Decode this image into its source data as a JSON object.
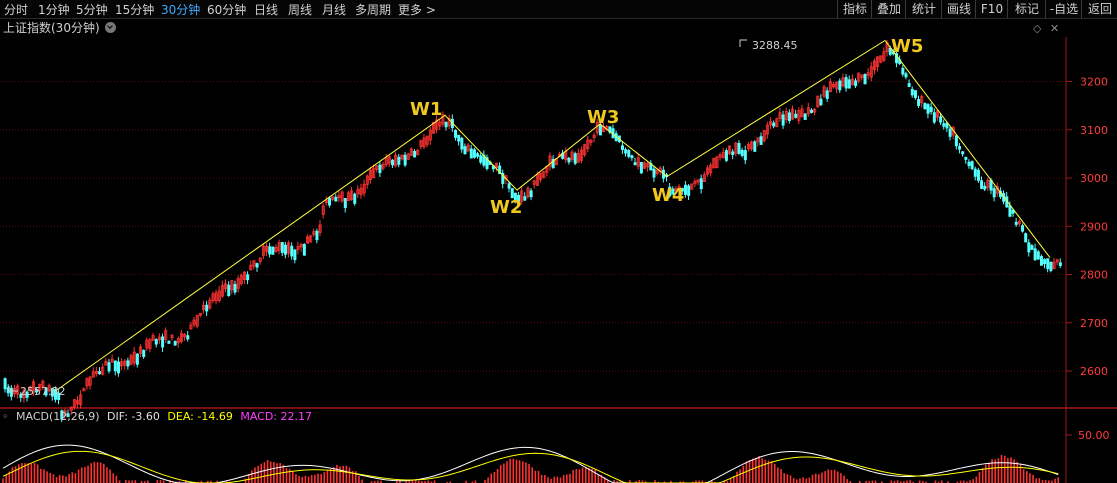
{
  "toolbar": {
    "periods": [
      "分时",
      "1分钟",
      "5分钟",
      "15分钟",
      "30分钟",
      "60分钟",
      "日线",
      "周线",
      "月线",
      "多周期",
      "更多 >"
    ],
    "active_period": "30分钟",
    "tools": [
      "指标",
      "叠加",
      "统计",
      "画线",
      "F10",
      "标记",
      "-自选",
      "返回"
    ]
  },
  "chart_title": "上证指数(30分钟)",
  "price_axis": [
    "3200",
    "3100",
    "3000",
    "2900",
    "2800",
    "2700",
    "2600"
  ],
  "annotations": {
    "high": "3288.45",
    "low": "2557.82",
    "waves": [
      "W1",
      "W2",
      "W3",
      "W4",
      "W5"
    ]
  },
  "macd": {
    "name": "MACD(12,26,9)",
    "dif": "DIF: -3.60",
    "dea": "DEA: -14.69",
    "macd": "MACD: 22.17",
    "axis_label": "50.00"
  },
  "colors": {
    "up": "#ff3232",
    "down": "#54ffff",
    "axis": "#a01818",
    "wave_line": "#ffff40",
    "wave_label": "#f0c81e",
    "active": "#3fa9ff",
    "dea": "#ffff00",
    "macd": "#ff40ff"
  },
  "chart_data": {
    "type": "candlestick",
    "y_range": [
      2540,
      3320
    ],
    "wave_points": [
      {
        "label": "start",
        "value": 2557.82
      },
      {
        "label": "W1",
        "value": 3130
      },
      {
        "label": "W2",
        "value": 2975
      },
      {
        "label": "W3",
        "value": 3112
      },
      {
        "label": "W4",
        "value": 3003
      },
      {
        "label": "W5",
        "value": 3285
      },
      {
        "label": "end",
        "value": 2835
      }
    ]
  }
}
